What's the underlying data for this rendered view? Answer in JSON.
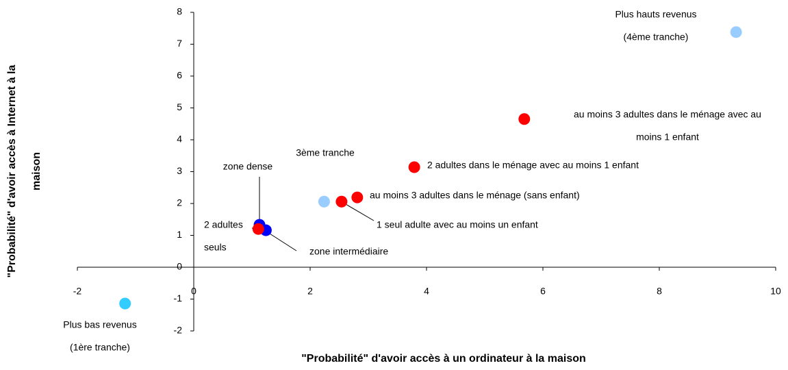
{
  "chart_data": {
    "type": "scatter",
    "xlabel": "\"Probabilité\" d'avoir accès à un ordinateur à la maison",
    "ylabel": [
      "\"Probabilité\" d'avoir accès à Internet à la",
      "maison"
    ],
    "xlim": [
      -2,
      10
    ],
    "xticks": [
      -2,
      0,
      2,
      4,
      6,
      8,
      10
    ],
    "ylim": [
      -2,
      8
    ],
    "yticks": [
      -2,
      -1,
      0,
      1,
      2,
      3,
      4,
      5,
      6,
      7,
      8
    ],
    "points": [
      {
        "label": [
          "Plus hauts revenus",
          "(4ème tranche)"
        ],
        "x": 9.32,
        "y": 7.38,
        "color": "#99ccff"
      },
      {
        "label": [
          "au moins 3 adultes dans le ménage avec au",
          "moins 1 enfant"
        ],
        "x": 5.68,
        "y": 4.65,
        "color": "#ff0000"
      },
      {
        "label": [
          "2 adultes dans le ménage avec au moins 1 enfant"
        ],
        "x": 3.79,
        "y": 3.14,
        "color": "#ff0000"
      },
      {
        "label": [
          "au moins 3 adultes dans le ménage (sans enfant)"
        ],
        "x": 2.81,
        "y": 2.19,
        "color": "#ff0000"
      },
      {
        "label": [
          "1 seul adulte avec au moins un enfant"
        ],
        "x": 2.54,
        "y": 2.06,
        "color": "#ff0000"
      },
      {
        "label": [
          "3ème tranche"
        ],
        "x": 2.24,
        "y": 2.06,
        "color": "#99ccff"
      },
      {
        "label": [
          "zone dense"
        ],
        "x": 1.13,
        "y": 1.33,
        "color": "#0000ff"
      },
      {
        "label": [
          "zone intermédiaire"
        ],
        "x": 1.24,
        "y": 1.16,
        "color": "#0000ff"
      },
      {
        "label": [
          "2 adultes",
          "seuls"
        ],
        "x": 1.11,
        "y": 1.2,
        "color": "#ff0000"
      },
      {
        "label": [
          "Plus bas revenus",
          "(1ère tranche)"
        ],
        "x": -1.18,
        "y": -1.14,
        "color": "#33ccff"
      }
    ]
  }
}
